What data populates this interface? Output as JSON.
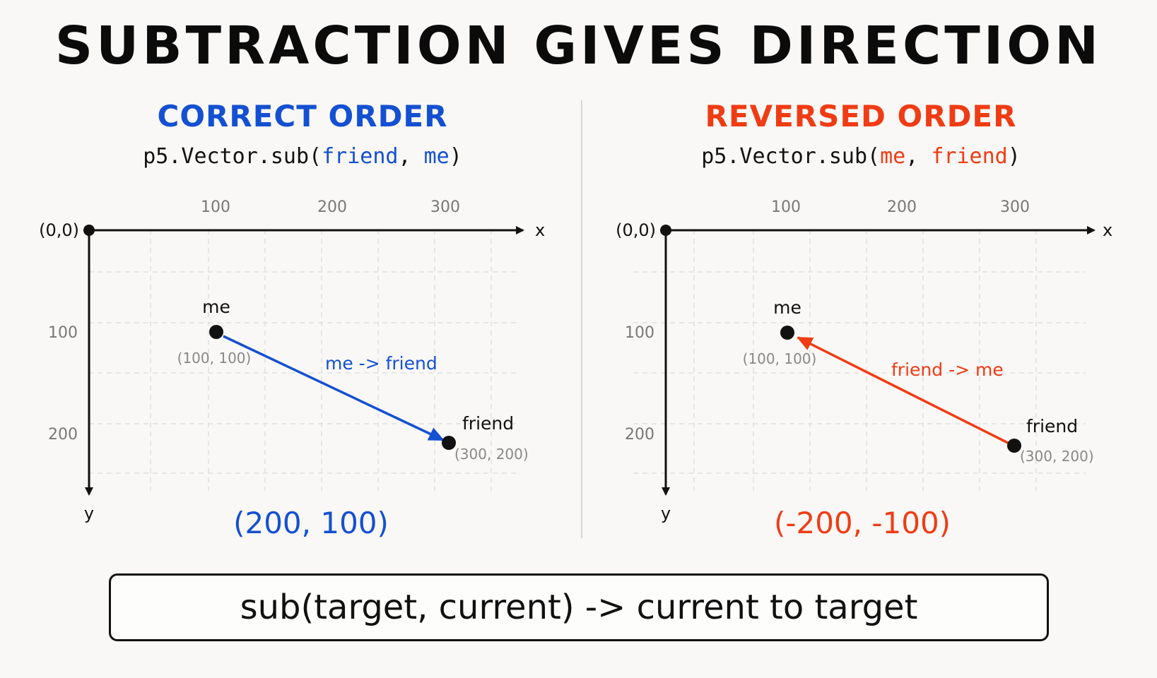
{
  "title": "SUBTRACTION GIVES DIRECTION",
  "colors": {
    "correct": "#1450d2",
    "reversed": "#f03c14"
  },
  "panels": [
    {
      "heading": "CORRECT ORDER",
      "code": {
        "prefix": "p5.Vector.sub(",
        "arg1": "friend",
        "sep": ", ",
        "arg2": "me",
        "suffix": ")"
      },
      "origin_label": "(0,0)",
      "x_axis_label": "x",
      "y_axis_label": "y",
      "x_ticks": [
        "100",
        "200",
        "300"
      ],
      "y_ticks": [
        "100",
        "200"
      ],
      "me_label": "me",
      "me_coord": "(100, 100)",
      "friend_label": "friend",
      "friend_coord": "(300, 200)",
      "vector_label": "me ->  friend",
      "result": "(200, 100)"
    },
    {
      "heading": "REVERSED ORDER",
      "code": {
        "prefix": "p5.Vector.sub(",
        "arg1": "me",
        "sep": ", ",
        "arg2": "friend",
        "suffix": ")"
      },
      "origin_label": "(0,0)",
      "x_axis_label": "x",
      "y_axis_label": "y",
      "x_ticks": [
        "100",
        "200",
        "300"
      ],
      "y_ticks": [
        "100",
        "200"
      ],
      "me_label": "me",
      "me_coord": "(100, 100)",
      "friend_label": "friend",
      "friend_coord": "(300, 200)",
      "vector_label": "friend -> me",
      "result": "(-200, -100)"
    }
  ],
  "rule": "sub(target, current) ->  current to target"
}
